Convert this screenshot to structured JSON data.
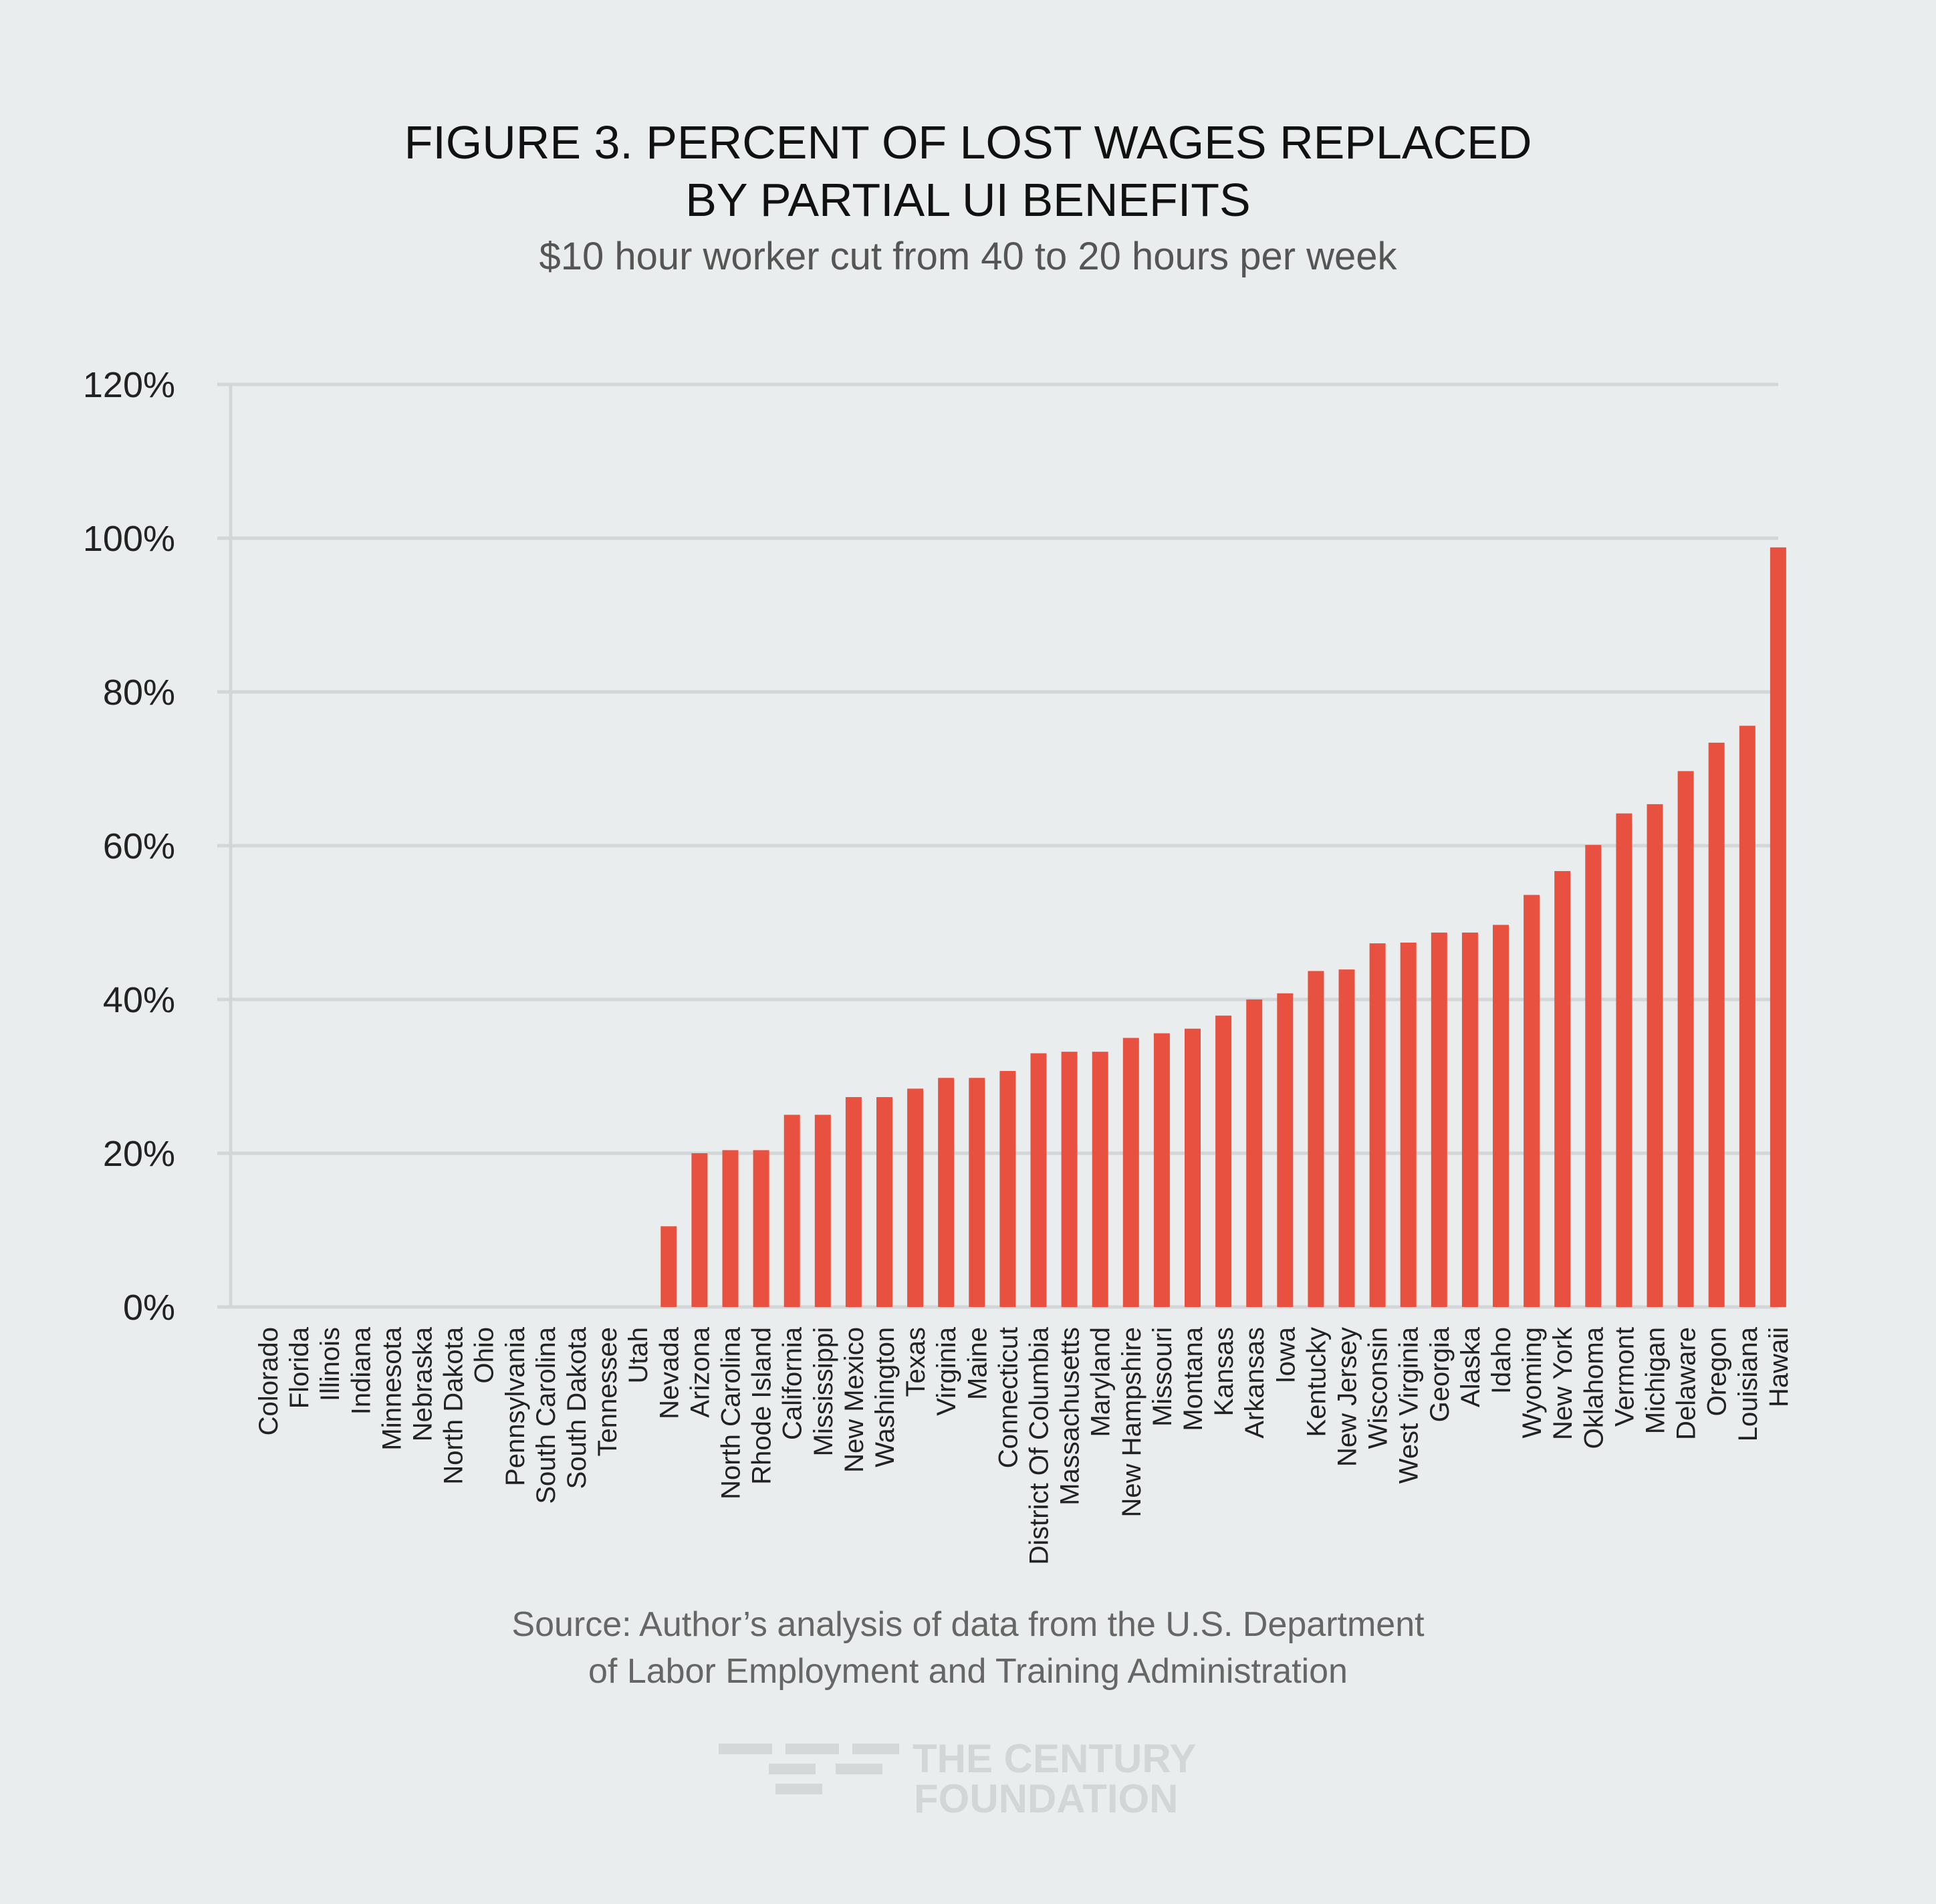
{
  "title_lines": [
    "FIGURE 3. PERCENT OF LOST WAGES REPLACED",
    "BY PARTIAL UI BENEFITS"
  ],
  "subtitle": "$10 hour worker cut from 40 to 20 hours per week",
  "source_lines": [
    "Source: Author’s analysis of data from the U.S. Department",
    "of Labor Employment and Training Administration"
  ],
  "logo": {
    "line1": "THE CENTURY",
    "line2": "FOUNDATION"
  },
  "colors": {
    "bar": "#e85140",
    "grid": "#d2d6d8",
    "background": "#e9edee"
  },
  "chart_data": {
    "type": "bar",
    "title": "FIGURE 3. PERCENT OF LOST WAGES REPLACED BY PARTIAL UI BENEFITS",
    "subtitle": "$10 hour worker cut from 40 to 20 hours per week",
    "xlabel": "",
    "ylabel": "",
    "ylim": [
      0,
      120
    ],
    "yticks": [
      0,
      20,
      40,
      60,
      80,
      100,
      120
    ],
    "ytick_labels": [
      "0%",
      "20%",
      "40%",
      "60%",
      "80%",
      "100%",
      "120%"
    ],
    "grid": true,
    "categories": [
      "Colorado",
      "Florida",
      "Illinois",
      "Indiana",
      "Minnesota",
      "Nebraska",
      "North Dakota",
      "Ohio",
      "Pennsylvania",
      "South Carolina",
      "South Dakota",
      "Tennessee",
      "Utah",
      "Nevada",
      "Arizona",
      "North Carolina",
      "Rhode Island",
      "California",
      "Mississippi",
      "New Mexico",
      "Washington",
      "Texas",
      "Virginia",
      "Maine",
      "Connecticut",
      "District Of Columbia",
      "Massachusetts",
      "Maryland",
      "New Hampshire",
      "Missouri",
      "Montana",
      "Kansas",
      "Arkansas",
      "Iowa",
      "Kentucky",
      "New Jersey",
      "Wisconsin",
      "West Virginia",
      "Georgia",
      "Alaska",
      "Idaho",
      "Wyoming",
      "New York",
      "Oklahoma",
      "Vermont",
      "Michigan",
      "Delaware",
      "Oregon",
      "Louisiana",
      "Hawaii"
    ],
    "values": [
      0,
      0,
      0,
      0,
      0,
      0,
      0,
      0,
      0,
      0,
      0,
      0,
      0,
      10.5,
      20,
      20.4,
      20.4,
      25,
      25,
      27.3,
      27.3,
      28.4,
      29.8,
      29.8,
      30.7,
      33,
      33.2,
      33.2,
      35,
      35.6,
      36.2,
      37.9,
      40,
      40.8,
      43.7,
      43.9,
      47.3,
      47.4,
      48.7,
      48.7,
      49.7,
      53.6,
      56.7,
      60.1,
      64.2,
      65.4,
      69.7,
      73.4,
      75.6,
      98.8
    ]
  }
}
